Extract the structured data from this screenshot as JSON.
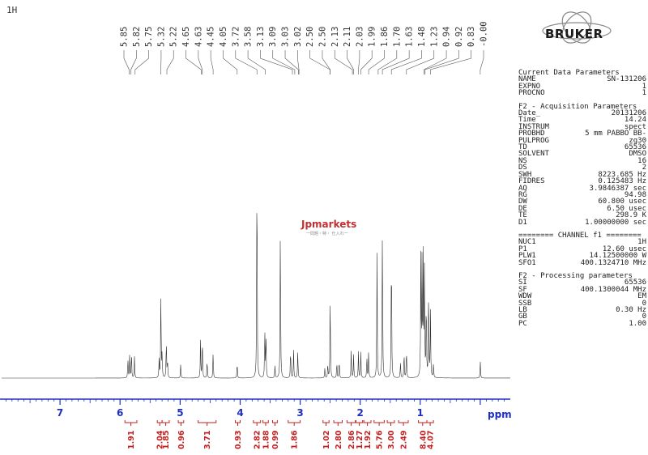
{
  "nucleus_label": "1H",
  "brand": "BRUKER",
  "watermark": {
    "main": "Jpmarkets",
    "sub": "一問題・特・ 仕入れ一"
  },
  "colors": {
    "spectrum": "#333333",
    "axis": "#1f2fc4",
    "integral": "#c41f1f",
    "text": "#222222"
  },
  "params": [
    {
      "type": "head",
      "text": "Current Data Parameters"
    },
    {
      "type": "row",
      "k": "NAME",
      "v": "SN-131206"
    },
    {
      "type": "row",
      "k": "EXPNO",
      "v": "1"
    },
    {
      "type": "row",
      "k": "PROCNO",
      "v": "1"
    },
    {
      "type": "gap"
    },
    {
      "type": "head",
      "text": "F2 - Acquisition Parameters"
    },
    {
      "type": "row",
      "k": "Date_",
      "v": "20131206"
    },
    {
      "type": "row",
      "k": "Time",
      "v": "14.24"
    },
    {
      "type": "row",
      "k": "INSTRUM",
      "v": "spect"
    },
    {
      "type": "row",
      "k": "PROBHD",
      "v": "5 mm PABBO BB-"
    },
    {
      "type": "row",
      "k": "PULPROG",
      "v": "zg30"
    },
    {
      "type": "row",
      "k": "TD",
      "v": "65536"
    },
    {
      "type": "row",
      "k": "SOLVENT",
      "v": "DMSO"
    },
    {
      "type": "row",
      "k": "NS",
      "v": "16"
    },
    {
      "type": "row",
      "k": "DS",
      "v": "2"
    },
    {
      "type": "row",
      "k": "SWH",
      "v": "8223.685 Hz"
    },
    {
      "type": "row",
      "k": "FIDRES",
      "v": "0.125483 Hz"
    },
    {
      "type": "row",
      "k": "AQ",
      "v": "3.9846387 sec"
    },
    {
      "type": "row",
      "k": "RG",
      "v": "94.98"
    },
    {
      "type": "row",
      "k": "DW",
      "v": "60.800 usec"
    },
    {
      "type": "row",
      "k": "DE",
      "v": "6.50 usec"
    },
    {
      "type": "row",
      "k": "TE",
      "v": "298.9 K"
    },
    {
      "type": "row",
      "k": "D1",
      "v": "1.00000000 sec"
    },
    {
      "type": "gap"
    },
    {
      "type": "head",
      "text": "======== CHANNEL f1 ========"
    },
    {
      "type": "row",
      "k": "NUC1",
      "v": "1H"
    },
    {
      "type": "row",
      "k": "P1",
      "v": "12.60 usec"
    },
    {
      "type": "row",
      "k": "PLW1",
      "v": "14.12500000 W"
    },
    {
      "type": "row",
      "k": "SFO1",
      "v": "400.1324710 MHz"
    },
    {
      "type": "gap"
    },
    {
      "type": "head",
      "text": "F2 - Processing parameters"
    },
    {
      "type": "row",
      "k": "SI",
      "v": "65536"
    },
    {
      "type": "row",
      "k": "SF",
      "v": "400.1300044 MHz"
    },
    {
      "type": "row",
      "k": "WDW",
      "v": "EM"
    },
    {
      "type": "row",
      "k": "SSB",
      "v": "0"
    },
    {
      "type": "row",
      "k": "LB",
      "v": "0.30 Hz"
    },
    {
      "type": "row",
      "k": "GB",
      "v": "0"
    },
    {
      "type": "row",
      "k": "PC",
      "v": "1.00"
    }
  ],
  "chart_data": {
    "type": "line",
    "xlabel": "ppm",
    "xlim": [
      8.0,
      -0.5
    ],
    "x_reversed": true,
    "ticks": [
      7,
      6,
      5,
      4,
      3,
      2,
      1
    ],
    "peak_labels": [
      "5.85",
      "5.82",
      "5.75",
      "5.32",
      "5.22",
      "4.65",
      "4.63",
      "4.45",
      "4.05",
      "3.72",
      "3.58",
      "3.13",
      "3.09",
      "3.03",
      "3.02",
      "2.50",
      "2.50",
      "2.13",
      "2.11",
      "2.03",
      "1.99",
      "1.86",
      "1.70",
      "1.63",
      "1.48",
      "1.23",
      "0.94",
      "0.92",
      "0.83",
      "-0.00"
    ],
    "peaks": [
      {
        "x": 5.87,
        "h": 0.08
      },
      {
        "x": 5.84,
        "h": 0.1
      },
      {
        "x": 5.81,
        "h": 0.11
      },
      {
        "x": 5.76,
        "h": 0.09
      },
      {
        "x": 5.35,
        "h": 0.08
      },
      {
        "x": 5.32,
        "h": 0.38
      },
      {
        "x": 5.3,
        "h": 0.1
      },
      {
        "x": 5.23,
        "h": 0.17
      },
      {
        "x": 5.21,
        "h": 0.08
      },
      {
        "x": 4.99,
        "h": 0.06
      },
      {
        "x": 4.66,
        "h": 0.16
      },
      {
        "x": 4.63,
        "h": 0.18
      },
      {
        "x": 4.55,
        "h": 0.08
      },
      {
        "x": 4.45,
        "h": 0.11
      },
      {
        "x": 4.05,
        "h": 0.07
      },
      {
        "x": 3.72,
        "h": 1.0
      },
      {
        "x": 3.59,
        "h": 0.21
      },
      {
        "x": 3.57,
        "h": 0.19
      },
      {
        "x": 3.42,
        "h": 0.05
      },
      {
        "x": 3.33,
        "h": 0.66
      },
      {
        "x": 3.16,
        "h": 0.13
      },
      {
        "x": 3.11,
        "h": 0.12
      },
      {
        "x": 3.04,
        "h": 0.12
      },
      {
        "x": 2.59,
        "h": 0.04
      },
      {
        "x": 2.54,
        "h": 0.06
      },
      {
        "x": 2.5,
        "h": 0.36
      },
      {
        "x": 2.39,
        "h": 0.07
      },
      {
        "x": 2.35,
        "h": 0.08
      },
      {
        "x": 2.15,
        "h": 0.12
      },
      {
        "x": 2.11,
        "h": 0.1
      },
      {
        "x": 2.03,
        "h": 0.11
      },
      {
        "x": 1.99,
        "h": 0.11
      },
      {
        "x": 1.89,
        "h": 0.09
      },
      {
        "x": 1.86,
        "h": 0.11
      },
      {
        "x": 1.72,
        "h": 0.53
      },
      {
        "x": 1.63,
        "h": 0.66
      },
      {
        "x": 1.48,
        "h": 0.6
      },
      {
        "x": 1.33,
        "h": 0.07
      },
      {
        "x": 1.27,
        "h": 0.11
      },
      {
        "x": 1.23,
        "h": 0.13
      },
      {
        "x": 0.99,
        "h": 0.52
      },
      {
        "x": 0.97,
        "h": 0.48
      },
      {
        "x": 0.95,
        "h": 0.5
      },
      {
        "x": 0.93,
        "h": 0.44
      },
      {
        "x": 0.9,
        "h": 0.35
      },
      {
        "x": 0.86,
        "h": 0.41
      },
      {
        "x": 0.83,
        "h": 0.29
      },
      {
        "x": 0.78,
        "h": 0.06
      },
      {
        "x": 0.0,
        "h": 0.07
      }
    ],
    "integrals": [
      {
        "label": "1.91",
        "from": 5.92,
        "to": 5.72
      },
      {
        "label": "2.04",
        "from": 5.38,
        "to": 5.3
      },
      {
        "label": "1.85",
        "from": 5.3,
        "to": 5.18
      },
      {
        "label": "0.96",
        "from": 5.03,
        "to": 4.94
      },
      {
        "label": "3.71",
        "from": 4.7,
        "to": 4.4
      },
      {
        "label": "0.93",
        "from": 4.08,
        "to": 4.0
      },
      {
        "label": "2.82",
        "from": 3.78,
        "to": 3.66
      },
      {
        "label": "1.88",
        "from": 3.62,
        "to": 3.53
      },
      {
        "label": "0.99",
        "from": 3.46,
        "to": 3.38
      },
      {
        "label": "1.86",
        "from": 3.2,
        "to": 3.0
      },
      {
        "label": "1.02",
        "from": 2.62,
        "to": 2.52
      },
      {
        "label": "2.80",
        "from": 2.44,
        "to": 2.3
      },
      {
        "label": "2.86",
        "from": 2.22,
        "to": 2.08
      },
      {
        "label": "1.27",
        "from": 2.07,
        "to": 1.96
      },
      {
        "label": "1.92",
        "from": 1.94,
        "to": 1.82
      },
      {
        "label": "5.76",
        "from": 1.77,
        "to": 1.6
      },
      {
        "label": "3.00",
        "from": 1.55,
        "to": 1.43
      },
      {
        "label": "2.49",
        "from": 1.36,
        "to": 1.2
      },
      {
        "label": "8.40",
        "from": 1.03,
        "to": 0.89
      },
      {
        "label": "4.07",
        "from": 0.89,
        "to": 0.78
      }
    ]
  }
}
